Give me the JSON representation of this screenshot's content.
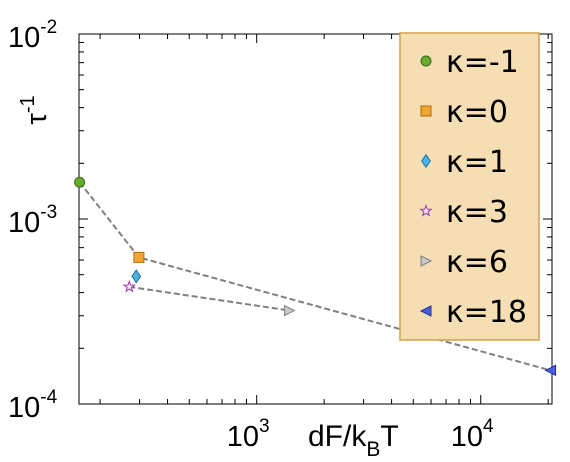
{
  "chart_data": {
    "type": "scatter",
    "title": "",
    "xlabel": {
      "main": "dF/k",
      "sub": "B",
      "tail": "T"
    },
    "ylabel": {
      "base": "τ",
      "sup": "-1"
    },
    "xscale": "log",
    "yscale": "log",
    "xlim": [
      161,
      20800
    ],
    "ylim": [
      0.0001,
      0.01
    ],
    "grid": false,
    "legend_position": "top-right",
    "x_ticks": [
      {
        "value": 1000,
        "base": "10",
        "exp": "3"
      },
      {
        "value": 10000,
        "base": "10",
        "exp": "4"
      }
    ],
    "y_ticks": [
      {
        "value": 0.01,
        "base": "10",
        "exp": "-2"
      },
      {
        "value": 0.001,
        "base": "10",
        "exp": "-3"
      },
      {
        "value": 0.0001,
        "base": "10",
        "exp": "-4"
      }
    ],
    "connector_lines": [
      {
        "x": [
          162,
          298,
          298,
          20500
        ],
        "y": [
          0.00158,
          0.00062,
          0.00062,
          0.000152
        ]
      },
      {
        "x": [
          270,
          1400
        ],
        "y": [
          0.00043,
          0.00032
        ]
      }
    ],
    "series": [
      {
        "name": "κ=-1",
        "marker": "circle",
        "color": "#6aaa2e",
        "stroke": "#3d6b14",
        "x": [
          162
        ],
        "y": [
          0.00158
        ]
      },
      {
        "name": "κ=0",
        "marker": "square",
        "color": "#f2a530",
        "stroke": "#b36b00",
        "x": [
          298
        ],
        "y": [
          0.00062
        ]
      },
      {
        "name": "κ=1",
        "marker": "diamond",
        "color": "#4ab4e6",
        "stroke": "#1f6f9e",
        "x": [
          290
        ],
        "y": [
          0.00049
        ]
      },
      {
        "name": "κ=3",
        "marker": "star",
        "color": "#f4e6f6",
        "stroke": "#9b3aa8",
        "x": [
          270
        ],
        "y": [
          0.00043
        ]
      },
      {
        "name": "κ=6",
        "marker": "triangle-right",
        "color": "#c8c8c8",
        "stroke": "#808080",
        "x": [
          1400
        ],
        "y": [
          0.00032
        ]
      },
      {
        "name": "κ=18",
        "marker": "triangle-left",
        "color": "#4a5ee0",
        "stroke": "#1f2f9e",
        "x": [
          20500
        ],
        "y": [
          0.000152
        ]
      }
    ],
    "legend_background": "#f5deb3",
    "legend_border": "#d4a04a",
    "line_color": "#808080"
  }
}
